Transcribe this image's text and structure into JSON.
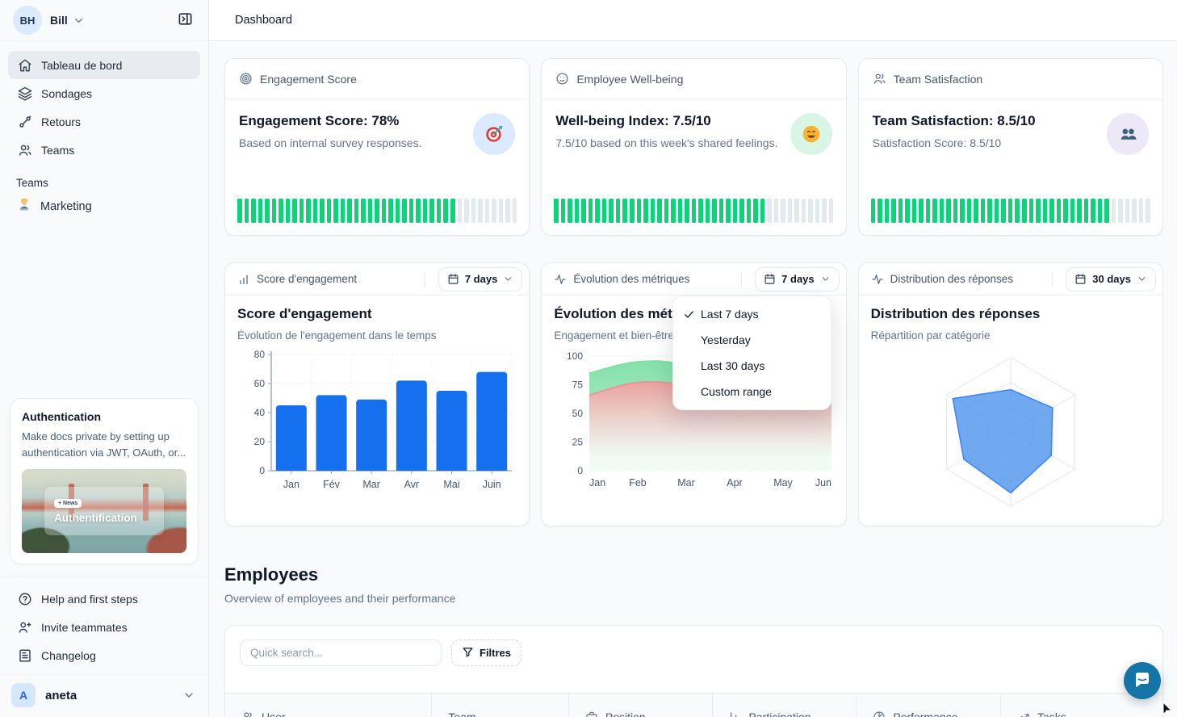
{
  "header": {
    "title": "Dashboard"
  },
  "sidebar": {
    "user": {
      "initials": "BH",
      "name": "Bill"
    },
    "nav": [
      {
        "label": "Tableau de bord",
        "icon": "home-icon",
        "active": true
      },
      {
        "label": "Sondages",
        "icon": "layers-icon",
        "active": false
      },
      {
        "label": "Retours",
        "icon": "feedback-icon",
        "active": false
      },
      {
        "label": "Teams",
        "icon": "users-icon",
        "active": false
      }
    ],
    "teams_section": {
      "label": "Teams",
      "items": [
        {
          "label": "Marketing",
          "emoji": "technologist"
        }
      ]
    },
    "auth_card": {
      "title": "Authentication",
      "description": "Make docs private by setting up authentication via JWT, OAuth, or...",
      "badge": "+ News",
      "image_title": "Authentification"
    },
    "footer": [
      {
        "label": "Help and first steps",
        "icon": "help-circle-icon"
      },
      {
        "label": "Invite teammates",
        "icon": "user-plus-icon"
      },
      {
        "label": "Changelog",
        "icon": "newspaper-icon"
      }
    ],
    "workspace": {
      "initial": "A",
      "name": "aneta"
    }
  },
  "stats": [
    {
      "header": "Engagement Score",
      "title": "Engagement Score: 78%",
      "subtitle": "Based on internal survey responses.",
      "percent": 78,
      "icon": "target-emoji",
      "icon_bg": "#dbeafe"
    },
    {
      "header": "Employee Well-being",
      "title": "Well-being Index: 7.5/10",
      "subtitle": "7.5/10 based on this week's shared feelings.",
      "percent": 75,
      "icon": "smile-emoji",
      "icon_bg": "#d9f5e5"
    },
    {
      "header": "Team Satisfaction",
      "title": "Team Satisfaction: 8.5/10",
      "subtitle": "Satisfaction Score: 8.5/10",
      "percent": 85,
      "icon": "busts-emoji",
      "icon_bg": "#ece8f8"
    }
  ],
  "charts": [
    {
      "header": "Score d'engagement",
      "range": "7 days",
      "title": "Score d'engagement",
      "subtitle": "Évolution de l'engagement dans le temps",
      "chart_data": {
        "type": "bar",
        "categories": [
          "Jan",
          "Fév",
          "Mar",
          "Avr",
          "Mai",
          "Juin"
        ],
        "values": [
          45,
          52,
          49,
          62,
          55,
          68
        ],
        "ylim": [
          0,
          80
        ],
        "yticks": [
          0,
          20,
          40,
          60,
          80
        ],
        "bar_color": "#1570EF",
        "grid": true
      }
    },
    {
      "header": "Évolution des métriques",
      "range": "7 days",
      "title": "Évolution des métriques",
      "subtitle": "Engagement et bien-être",
      "chart_data": {
        "type": "area",
        "x": [
          "Jan",
          "Feb",
          "Mar",
          "Apr",
          "May",
          "Jun"
        ],
        "ylim": [
          0,
          100
        ],
        "yticks": [
          0,
          25,
          50,
          75,
          100
        ],
        "series": [
          {
            "name": "Engagement",
            "color": "#7fdfa6",
            "values": [
              85,
              95,
              91,
              63,
              66,
              65
            ]
          },
          {
            "name": "Bien-être",
            "color": "#ef9e9e",
            "values": [
              66,
              77,
              74,
              58,
              64,
              64
            ]
          }
        ],
        "grid": true
      }
    },
    {
      "header": "Distribution des réponses",
      "range": "30 days",
      "title": "Distribution des réponses",
      "subtitle": "Répartition par catégorie",
      "chart_data": {
        "type": "radar",
        "axes_count": 6,
        "max": 100,
        "values": [
          57,
          65,
          63,
          82,
          73,
          90
        ],
        "fill_color": "#4e93ec",
        "stroke_color": "#3b82f6"
      }
    }
  ],
  "dropdown": {
    "items": [
      {
        "label": "Last 7 days",
        "checked": true
      },
      {
        "label": "Yesterday",
        "checked": false
      },
      {
        "label": "Last 30 days",
        "checked": false
      },
      {
        "label": "Custom range",
        "checked": false
      }
    ]
  },
  "employees": {
    "title": "Employees",
    "subtitle": "Overview of employees and their performance",
    "search_placeholder": "Quick search...",
    "filter_label": "Filtres",
    "table": {
      "columns": [
        {
          "label": "User",
          "icon": "users-icon"
        },
        {
          "label": "Team",
          "icon": ""
        },
        {
          "label": "Position",
          "icon": "briefcase-icon"
        },
        {
          "label": "Participation",
          "icon": "chart-column-icon"
        },
        {
          "label": "Performance",
          "icon": "pie-chart-icon"
        },
        {
          "label": "Tasks",
          "icon": "trending-up-icon"
        }
      ]
    }
  },
  "colors": {
    "accent_blue": "#1570EF",
    "progress_green": "#0cd478",
    "progress_gray": "#e4e9ef",
    "chat_blue": "#1574a6"
  }
}
